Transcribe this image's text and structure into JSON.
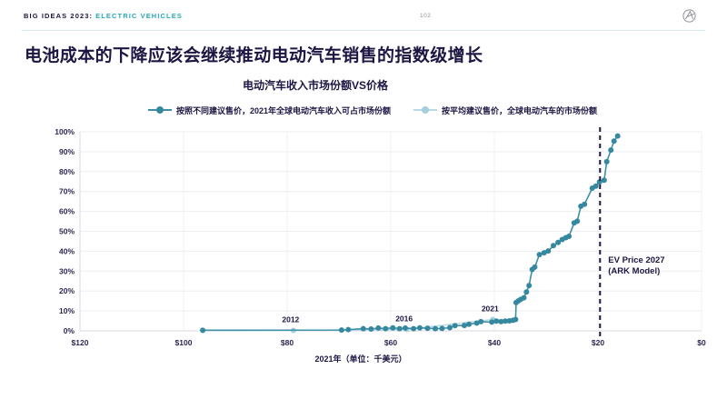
{
  "header": {
    "brand": "BIG IDEAS 2023:",
    "section": "ELECTRIC VEHICLES",
    "page": "102"
  },
  "title": "电池成本的下降应该会继续推动电动汽车销售的指数级增长",
  "chart_data": {
    "type": "line",
    "title": "电动汽车收入市场份额VS价格",
    "xlabel": "2021年（单位：千美元）",
    "x_axis": {
      "min": 0,
      "max": 120,
      "reversed": true,
      "ticks": [
        120,
        100,
        80,
        60,
        40,
        20,
        0
      ],
      "tick_labels": [
        "$120",
        "$100",
        "$80",
        "$60",
        "$40",
        "$20",
        "$0"
      ]
    },
    "y_axis": {
      "min": 0,
      "max": 100,
      "step": 10,
      "tick_labels": [
        "0%",
        "10%",
        "20%",
        "30%",
        "40%",
        "50%",
        "60%",
        "70%",
        "80%",
        "90%",
        "100%"
      ]
    },
    "grid": true,
    "legend_position": "top",
    "series": [
      {
        "name": "按照不同建议售价，2021年全球电动汽车收入可占市场份额",
        "color": "#3d90a5",
        "dot_color": "#35889e",
        "points": [
          [
            96.3,
            0.3
          ],
          [
            69.5,
            0.4
          ],
          [
            68.2,
            0.6
          ],
          [
            65.3,
            1.1
          ],
          [
            63.8,
            0.9
          ],
          [
            62.4,
            1.4
          ],
          [
            61.0,
            1.1
          ],
          [
            59.6,
            1.5
          ],
          [
            58.3,
            1.1
          ],
          [
            57.2,
            1.4
          ],
          [
            55.6,
            1.1
          ],
          [
            54.4,
            1.5
          ],
          [
            52.9,
            1.3
          ],
          [
            51.4,
            1.1
          ],
          [
            50.1,
            1.2
          ],
          [
            48.6,
            1.6
          ],
          [
            47.6,
            2.6
          ],
          [
            45.8,
            2.7
          ],
          [
            44.9,
            3.3
          ],
          [
            43.4,
            3.9
          ],
          [
            42.6,
            4.6
          ],
          [
            40.5,
            4.4
          ],
          [
            39.6,
            4.9
          ],
          [
            38.7,
            4.6
          ],
          [
            37.9,
            4.9
          ],
          [
            37.1,
            5.0
          ],
          [
            36.4,
            5.3
          ],
          [
            35.9,
            5.7
          ],
          [
            35.8,
            14.2
          ],
          [
            35.4,
            15.0
          ],
          [
            34.9,
            15.8
          ],
          [
            34.3,
            16.6
          ],
          [
            33.8,
            19.5
          ],
          [
            33.3,
            22.8
          ],
          [
            32.7,
            30.8
          ],
          [
            32.2,
            32.0
          ],
          [
            31.3,
            38.3
          ],
          [
            30.4,
            39.2
          ],
          [
            29.6,
            40.1
          ],
          [
            28.6,
            42.8
          ],
          [
            27.7,
            44.4
          ],
          [
            26.9,
            45.9
          ],
          [
            26.2,
            46.8
          ],
          [
            25.6,
            47.5
          ],
          [
            24.6,
            54.2
          ],
          [
            24.0,
            55.1
          ],
          [
            23.3,
            62.6
          ],
          [
            22.6,
            63.6
          ],
          [
            21.1,
            71.7
          ],
          [
            20.4,
            72.7
          ],
          [
            19.7,
            74.8
          ],
          [
            18.8,
            75.7
          ],
          [
            18.3,
            85.0
          ],
          [
            17.5,
            90.8
          ],
          [
            16.9,
            95.3
          ],
          [
            16.2,
            97.9
          ]
        ]
      },
      {
        "name": "按平均建议售价，全球电动汽车的市场份额",
        "color": "#b8dae4",
        "dot_color": "#a4cfdd",
        "points": [
          [
            96.3,
            0.25
          ],
          [
            78.8,
            0.2
          ],
          [
            56.9,
            0.7
          ],
          [
            40.3,
            5.7
          ]
        ]
      }
    ],
    "point_annotations": [
      {
        "label": "2012",
        "price": 78.8,
        "share": 0.2
      },
      {
        "label": "2016",
        "price": 56.9,
        "share": 0.7
      },
      {
        "label": "2021",
        "price": 40.3,
        "share": 5.7
      }
    ],
    "reference_line": {
      "price": 19.6,
      "label_lines": [
        "EV Price 2027",
        "(ARK Model)"
      ]
    }
  },
  "colors": {
    "navy": "#1c1642",
    "teal": "#29a5bc",
    "gridline": "#ededf2",
    "axis_line": "#d9d9e2",
    "vertical_gridline": "#f2f2f6",
    "tick_text": "#2b2750"
  }
}
